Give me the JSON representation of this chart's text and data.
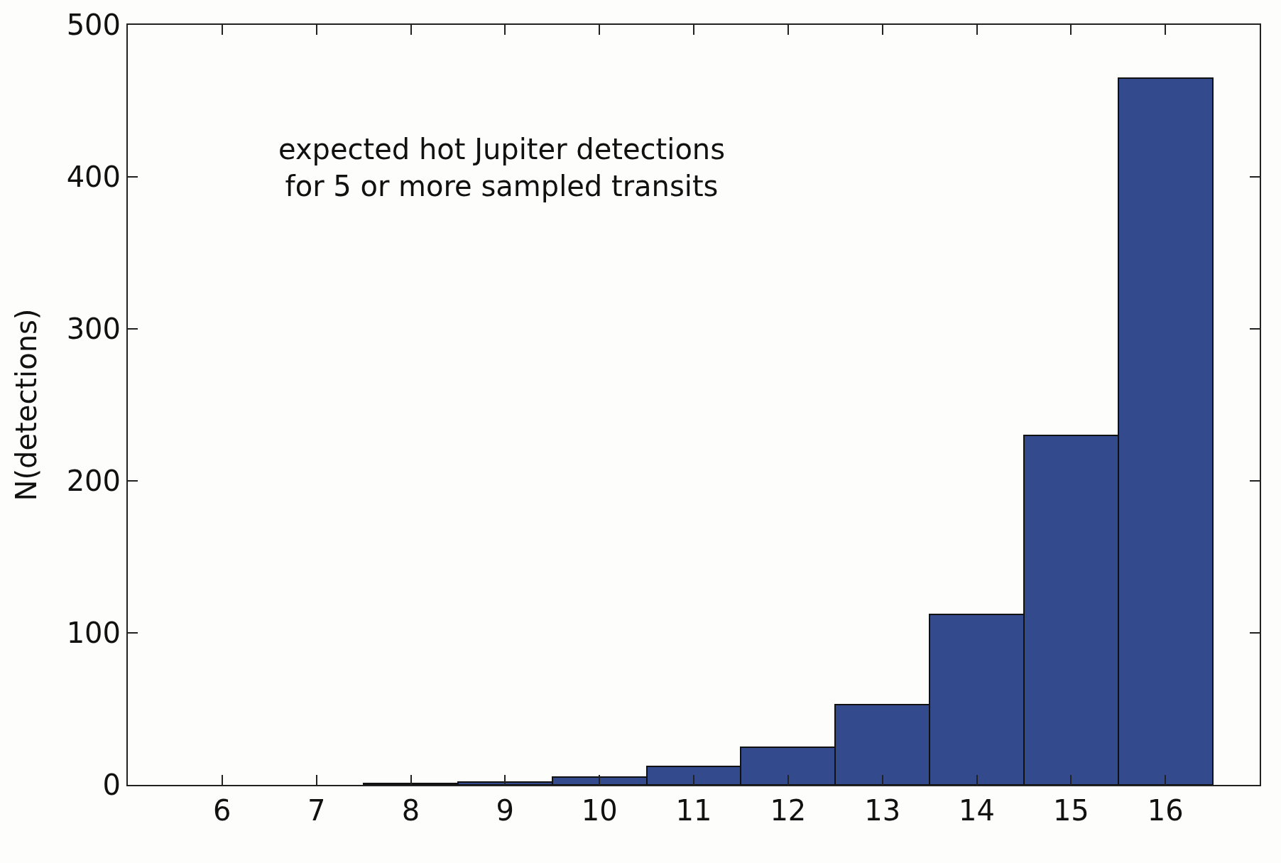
{
  "chart_data": {
    "type": "histogram",
    "ylabel": "N(detections)",
    "annotations": [
      "expected hot Jupiter detections\nfor 5 or more sampled transits"
    ],
    "bins": [
      7.5,
      8.5,
      9.5,
      10.5,
      11.5,
      12.5,
      13.5,
      14.5,
      15.5,
      16.5
    ],
    "values": [
      1,
      2,
      5,
      12,
      25,
      53,
      112,
      230,
      465
    ],
    "color": "#334b8c",
    "xlim": [
      5,
      17
    ],
    "xticks": [
      6,
      7,
      8,
      9,
      10,
      11,
      12,
      13,
      14,
      15,
      16
    ],
    "ylim": [
      0,
      500
    ],
    "yticks": [
      0,
      100,
      200,
      300,
      400,
      500
    ],
    "grid": false
  }
}
